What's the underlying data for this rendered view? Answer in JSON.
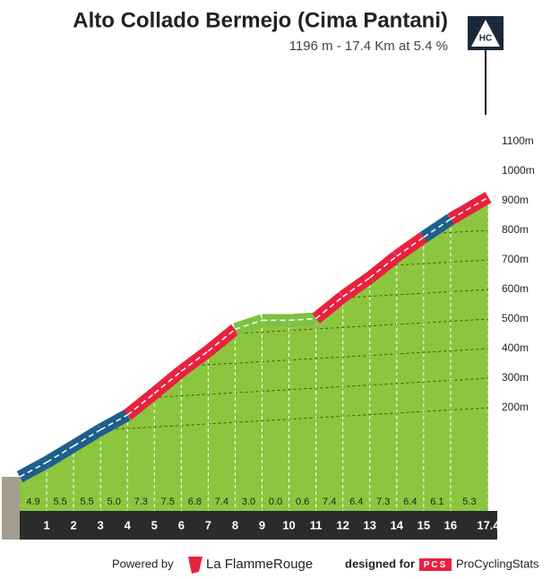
{
  "title": "Alto Collado Bermejo (Cima Pantani)",
  "subtitle": "1196 m - 17.4 Km at 5.4 %",
  "badge": "HC",
  "chart_data": {
    "type": "profile",
    "xlim": [
      0,
      17.4
    ],
    "xticks": [
      1,
      2,
      3,
      4,
      5,
      6,
      7,
      8,
      9,
      10,
      11,
      12,
      13,
      14,
      15,
      16,
      17.4
    ],
    "ylim": [
      100,
      1200
    ],
    "yticks": [
      {
        "value": 200,
        "label": "200m"
      },
      {
        "value": 300,
        "label": "300m"
      },
      {
        "value": 400,
        "label": "400m"
      },
      {
        "value": 500,
        "label": "500m"
      },
      {
        "value": 600,
        "label": "600m"
      },
      {
        "value": 700,
        "label": "700m"
      },
      {
        "value": 800,
        "label": "800m"
      },
      {
        "value": 900,
        "label": "900m"
      },
      {
        "value": 1000,
        "label": "1000m"
      },
      {
        "value": 1100,
        "label": "1100m"
      }
    ],
    "values": [
      4.9,
      5.5,
      5.5,
      5.0,
      7.3,
      7.5,
      6.8,
      7.4,
      3.0,
      0.0,
      0.6,
      7.4,
      6.4,
      7.3,
      6.4,
      6.1,
      5.3
    ],
    "value_labels": [
      "4.9",
      "5.5",
      "5.5",
      "5.0",
      "7.3",
      "7.5",
      "6.8",
      "7.4",
      "3.0",
      "0.0",
      "0.6",
      "7.4",
      "6.4",
      "7.3",
      "6.4",
      "6.1",
      "5.3"
    ],
    "colors": [
      "#1f5f8b",
      "#1f5f8b",
      "#1f5f8b",
      "#1f5f8b",
      "#e8213f",
      "#e8213f",
      "#e8213f",
      "#e8213f",
      "#7dc242",
      "#7dc242",
      "#7dc242",
      "#e8213f",
      "#e8213f",
      "#e8213f",
      "#e8213f",
      "#1f5f8b",
      "#e8213f"
    ],
    "fill": "#8cc63f"
  },
  "footer": {
    "powered_by": "Powered by",
    "brand": "La FlammeRouge",
    "designed_for": "designed for",
    "pcs_logo": "PCS",
    "site": "ProCyclingStats"
  }
}
